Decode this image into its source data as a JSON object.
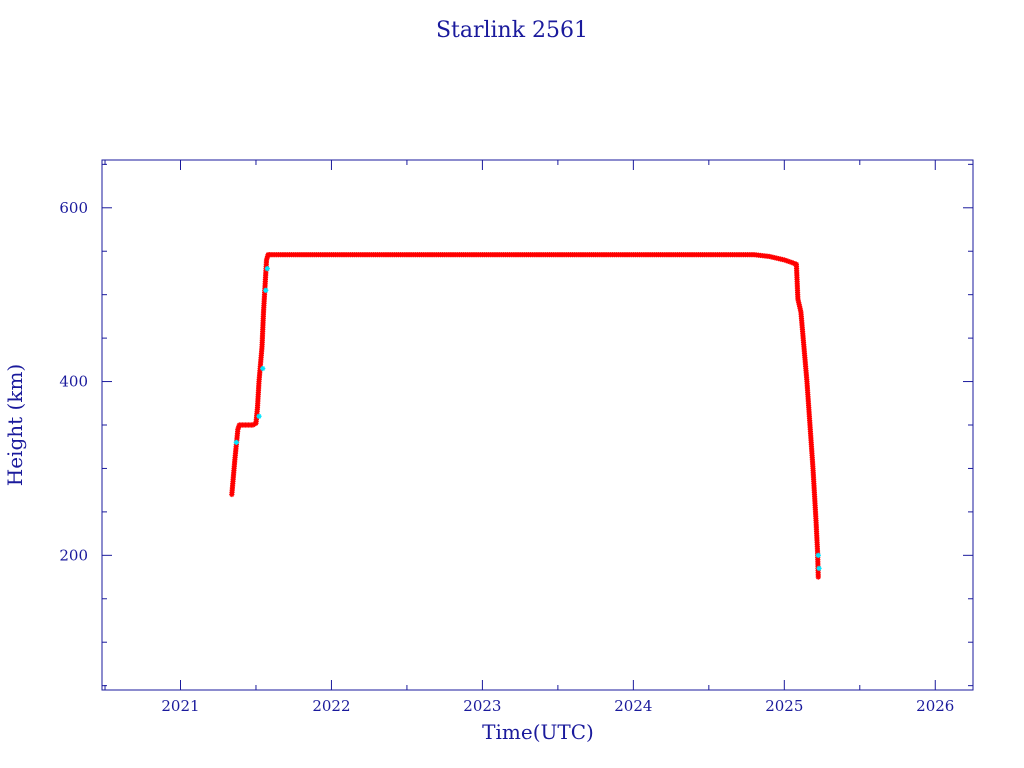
{
  "chart_data": {
    "type": "scatter",
    "title": "Starlink 2561",
    "xlabel": "Time(UTC)",
    "ylabel": "Height (km)",
    "xlim": [
      2020.48,
      2026.25
    ],
    "ylim": [
      45,
      655
    ],
    "x_ticks": [
      2021,
      2022,
      2023,
      2024,
      2025,
      2026
    ],
    "y_ticks": [
      200,
      400,
      600
    ],
    "marker": "asterisk",
    "colors": {
      "primary": "#ff0000",
      "secondary": "#00e5ff",
      "axis": "#1a1a9c"
    },
    "grid": false,
    "series": [
      {
        "x": [
          2021.34,
          2021.345,
          2021.36,
          2021.38,
          2021.39,
          2021.4,
          2021.42,
          2021.45,
          2021.48,
          2021.5,
          2021.51,
          2021.52,
          2021.54,
          2021.55,
          2021.56,
          2021.57,
          2021.58,
          2021.6,
          2021.65,
          2021.75,
          2021.9,
          2022.0,
          2022.25,
          2022.5,
          2022.75,
          2023.0,
          2023.25,
          2023.5,
          2023.75,
          2024.0,
          2024.25,
          2024.5,
          2024.7,
          2024.8,
          2024.9,
          2025.0,
          2025.05,
          2025.08,
          2025.09,
          2025.11,
          2025.13,
          2025.15,
          2025.17,
          2025.19,
          2025.2,
          2025.21,
          2025.22,
          2025.225
        ],
        "y": [
          270,
          280,
          310,
          345,
          350,
          350,
          350,
          350,
          350,
          352,
          370,
          400,
          440,
          480,
          510,
          540,
          546,
          546,
          546,
          546,
          546,
          546,
          546,
          546,
          546,
          546,
          546,
          546,
          546,
          546,
          546,
          546,
          546,
          546,
          544,
          540,
          537,
          535,
          495,
          480,
          440,
          400,
          350,
          300,
          270,
          240,
          205,
          175
        ]
      }
    ],
    "secondary_points": {
      "x": [
        2021.37,
        2021.52,
        2021.545,
        2021.565,
        2021.575,
        2025.225,
        2025.23
      ],
      "y": [
        330,
        360,
        415,
        505,
        530,
        200,
        185
      ]
    }
  }
}
